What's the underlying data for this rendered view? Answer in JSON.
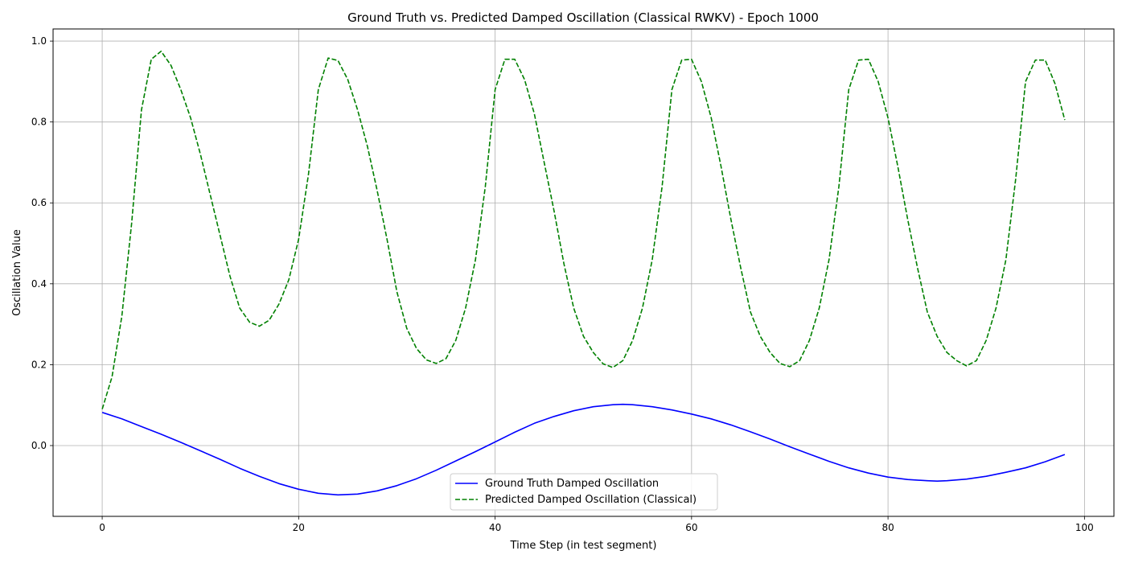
{
  "chart_data": {
    "type": "line",
    "title": "Ground Truth vs. Predicted Damped Oscillation (Classical RWKV) - Epoch 1000",
    "xlabel": "Time Step (in test segment)",
    "ylabel": "Oscillation Value",
    "xlim": [
      -5,
      103
    ],
    "ylim": [
      -0.175,
      1.03
    ],
    "xticks": [
      0,
      20,
      40,
      60,
      80,
      100
    ],
    "xtick_labels": [
      "0",
      "20",
      "40",
      "60",
      "80",
      "100"
    ],
    "yticks": [
      0.0,
      0.2,
      0.4,
      0.6,
      0.8,
      1.0
    ],
    "ytick_labels": [
      "0.0",
      "0.2",
      "0.4",
      "0.6",
      "0.8",
      "1.0"
    ],
    "grid": true,
    "legend_position": "bottom-center",
    "series": [
      {
        "name": "Ground Truth Damped Oscillation",
        "color": "#0000ff",
        "style": "solid",
        "x": [
          0,
          2,
          4,
          6,
          8,
          10,
          12,
          14,
          16,
          18,
          20,
          22,
          24,
          26,
          28,
          30,
          32,
          34,
          36,
          38,
          40,
          42,
          44,
          46,
          48,
          50,
          52,
          53,
          54,
          56,
          58,
          60,
          62,
          64,
          66,
          68,
          70,
          72,
          74,
          76,
          78,
          80,
          82,
          84,
          85,
          86,
          88,
          90,
          92,
          94,
          96,
          98
        ],
        "y": [
          0.082,
          0.066,
          0.047,
          0.028,
          0.008,
          -0.013,
          -0.034,
          -0.056,
          -0.076,
          -0.094,
          -0.108,
          -0.118,
          -0.122,
          -0.12,
          -0.112,
          -0.099,
          -0.082,
          -0.061,
          -0.038,
          -0.015,
          0.009,
          0.033,
          0.055,
          0.072,
          0.086,
          0.096,
          0.101,
          0.102,
          0.101,
          0.096,
          0.088,
          0.078,
          0.066,
          0.051,
          0.034,
          0.016,
          -0.003,
          -0.021,
          -0.039,
          -0.055,
          -0.068,
          -0.078,
          -0.084,
          -0.087,
          -0.088,
          -0.087,
          -0.083,
          -0.076,
          -0.066,
          -0.055,
          -0.04,
          -0.022
        ]
      },
      {
        "name": "Predicted Damped Oscillation (Classical)",
        "color": "#008000",
        "style": "dashed",
        "x": [
          0,
          1,
          2,
          3,
          4,
          5,
          6,
          7,
          8,
          9,
          10,
          11,
          12,
          13,
          14,
          15,
          16,
          17,
          18,
          19,
          20,
          21,
          22,
          23,
          24,
          25,
          26,
          27,
          28,
          29,
          30,
          31,
          32,
          33,
          34,
          35,
          36,
          37,
          38,
          39,
          40,
          41,
          42,
          43,
          44,
          45,
          46,
          47,
          48,
          49,
          50,
          51,
          52,
          53,
          54,
          55,
          56,
          57,
          58,
          59,
          60,
          61,
          62,
          63,
          64,
          65,
          66,
          67,
          68,
          69,
          70,
          71,
          72,
          73,
          74,
          75,
          76,
          77,
          78,
          79,
          80,
          81,
          82,
          83,
          84,
          85,
          86,
          87,
          88,
          89,
          90,
          91,
          92,
          93,
          94,
          95,
          96,
          97,
          98
        ],
        "y": [
          0.09,
          0.17,
          0.32,
          0.55,
          0.83,
          0.955,
          0.975,
          0.94,
          0.88,
          0.81,
          0.72,
          0.62,
          0.52,
          0.42,
          0.34,
          0.305,
          0.295,
          0.31,
          0.35,
          0.41,
          0.51,
          0.67,
          0.88,
          0.958,
          0.952,
          0.905,
          0.83,
          0.74,
          0.63,
          0.51,
          0.38,
          0.29,
          0.24,
          0.212,
          0.203,
          0.215,
          0.26,
          0.34,
          0.46,
          0.64,
          0.88,
          0.955,
          0.955,
          0.905,
          0.82,
          0.7,
          0.58,
          0.45,
          0.34,
          0.27,
          0.23,
          0.202,
          0.193,
          0.21,
          0.26,
          0.34,
          0.46,
          0.64,
          0.88,
          0.953,
          0.955,
          0.9,
          0.81,
          0.69,
          0.56,
          0.44,
          0.33,
          0.27,
          0.23,
          0.203,
          0.195,
          0.21,
          0.26,
          0.34,
          0.46,
          0.64,
          0.88,
          0.953,
          0.955,
          0.9,
          0.81,
          0.69,
          0.56,
          0.44,
          0.33,
          0.27,
          0.23,
          0.21,
          0.197,
          0.21,
          0.26,
          0.34,
          0.46,
          0.66,
          0.9,
          0.953,
          0.953,
          0.895,
          0.805
        ]
      }
    ]
  }
}
